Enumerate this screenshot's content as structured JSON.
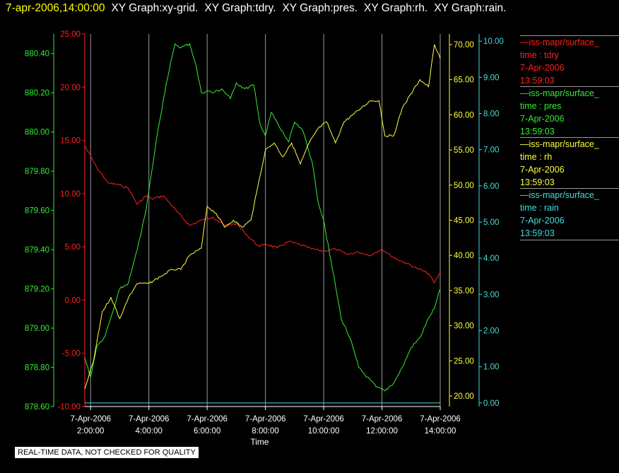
{
  "header": {
    "timestamp": "7-apr-2006,14:00:00",
    "titles": [
      "XY Graph:xy-grid.",
      "XY Graph:tdry.",
      "XY Graph:pres.",
      "XY Graph:rh.",
      "XY Graph:rain."
    ]
  },
  "legend": [
    {
      "source": "—iss-mapr/surface_",
      "var": "time : tdry",
      "date": "7-Apr-2006",
      "time": "13:59:03",
      "color": "#ff2020"
    },
    {
      "source": "—iss-mapr/surface_",
      "var": "time : pres",
      "date": "7-Apr-2006",
      "time": "13:59:03",
      "color": "#33ee33"
    },
    {
      "source": "—iss-mapr/surface_",
      "var": "time : rh",
      "date": "7-Apr-2006",
      "time": "13:59:03",
      "color": "#ffff44"
    },
    {
      "source": "—iss-mapr/surface_",
      "var": "time : rain",
      "date": "7-Apr-2006",
      "time": "13:59:03",
      "color": "#44dddd"
    }
  ],
  "disclaimer": "REAL-TIME DATA, NOT CHECKED FOR QUALITY",
  "chart_data": {
    "type": "line",
    "xlabel": "Time",
    "x_range": [
      1.8,
      14.0
    ],
    "x_ticks": [
      {
        "value": 2,
        "date": "7-Apr-2006",
        "time": "2:00:00"
      },
      {
        "value": 4,
        "date": "7-Apr-2006",
        "time": "4:00:00"
      },
      {
        "value": 6,
        "date": "7-Apr-2006",
        "time": "6:00:00"
      },
      {
        "value": 8,
        "date": "7-Apr-2006",
        "time": "8:00:00"
      },
      {
        "value": 10,
        "date": "7-Apr-2006",
        "time": "10:00:00"
      },
      {
        "value": 12,
        "date": "7-Apr-2006",
        "time": "12:00:00"
      },
      {
        "value": 14,
        "date": "7-Apr-2006",
        "time": "14:00:00"
      }
    ],
    "grid": "vertical",
    "axes": [
      {
        "id": "pres",
        "color": "#33ee33",
        "range": [
          878.6,
          880.5
        ],
        "ticks": [
          "878.60",
          "878.80",
          "879.00",
          "879.20",
          "879.40",
          "879.60",
          "879.80",
          "880.00",
          "880.20",
          "880.40"
        ]
      },
      {
        "id": "tdry",
        "color": "#ff2020",
        "range": [
          -10,
          25
        ],
        "ticks": [
          "-10.00",
          "-5.00",
          "0.00",
          "5.00",
          "10.00",
          "15.00",
          "20.00",
          "25.00"
        ]
      },
      {
        "id": "rh",
        "color": "#ffff44",
        "range": [
          18.5,
          71.5
        ],
        "ticks": [
          "20.00",
          "25.00",
          "30.00",
          "35.00",
          "40.00",
          "45.00",
          "50.00",
          "55.00",
          "60.00",
          "65.00",
          "70.00"
        ]
      },
      {
        "id": "rain",
        "color": "#44dddd",
        "range": [
          -0.1,
          10.2
        ],
        "ticks": [
          "0.00",
          "1.00",
          "2.00",
          "3.00",
          "4.00",
          "5.00",
          "6.00",
          "7.00",
          "8.00",
          "9.00",
          "10.00"
        ]
      }
    ],
    "series": [
      {
        "axis": "tdry",
        "color": "#ff2020",
        "x": [
          1.8,
          2.2,
          2.6,
          3.0,
          3.3,
          3.6,
          3.9,
          4.1,
          4.5,
          5.0,
          5.4,
          5.8,
          6.2,
          6.6,
          7.0,
          7.4,
          7.8,
          8.0,
          8.4,
          8.8,
          9.2,
          9.6,
          10.0,
          10.4,
          10.8,
          11.2,
          11.6,
          12.0,
          12.4,
          12.8,
          13.2,
          13.6,
          13.8,
          14.0
        ],
        "y": [
          14.5,
          12.5,
          11.0,
          10.8,
          10.5,
          9.0,
          9.8,
          9.5,
          9.8,
          8.2,
          7.0,
          7.5,
          7.8,
          7.0,
          7.2,
          6.0,
          5.0,
          5.3,
          4.9,
          5.5,
          5.2,
          4.8,
          4.6,
          4.8,
          4.3,
          4.5,
          4.2,
          4.8,
          4.0,
          3.5,
          3.0,
          2.5,
          1.6,
          2.6
        ]
      },
      {
        "axis": "pres",
        "color": "#33ee33",
        "x": [
          1.8,
          2.0,
          2.2,
          2.5,
          2.8,
          3.0,
          3.3,
          3.6,
          3.9,
          4.1,
          4.3,
          4.6,
          4.9,
          5.1,
          5.4,
          5.6,
          5.8,
          6.0,
          6.2,
          6.5,
          6.8,
          7.0,
          7.3,
          7.6,
          7.8,
          8.0,
          8.2,
          8.5,
          8.8,
          9.0,
          9.3,
          9.6,
          9.8,
          10.0,
          10.2,
          10.4,
          10.6,
          10.9,
          11.2,
          11.5,
          11.8,
          12.1,
          12.4,
          12.7,
          13.0,
          13.3,
          13.6,
          13.8,
          14.0
        ],
        "y": [
          878.85,
          878.75,
          878.9,
          878.96,
          879.1,
          879.2,
          879.23,
          879.4,
          879.6,
          879.8,
          880.0,
          880.25,
          880.45,
          880.43,
          880.45,
          880.35,
          880.2,
          880.21,
          880.2,
          880.22,
          880.17,
          880.25,
          880.22,
          880.24,
          880.05,
          879.98,
          880.1,
          880.02,
          879.95,
          880.05,
          880.0,
          879.85,
          879.65,
          879.55,
          879.38,
          879.22,
          879.05,
          878.95,
          878.8,
          878.75,
          878.7,
          878.68,
          878.72,
          878.8,
          878.9,
          878.95,
          879.05,
          879.1,
          879.2
        ]
      },
      {
        "axis": "rh",
        "color": "#ffff44",
        "x": [
          1.8,
          2.1,
          2.4,
          2.7,
          3.0,
          3.3,
          3.6,
          4.0,
          4.4,
          4.8,
          5.1,
          5.4,
          5.8,
          6.0,
          6.3,
          6.6,
          6.9,
          7.2,
          7.5,
          7.7,
          8.0,
          8.3,
          8.6,
          8.9,
          9.2,
          9.5,
          9.8,
          10.1,
          10.4,
          10.7,
          11.0,
          11.3,
          11.6,
          11.9,
          12.1,
          12.4,
          12.7,
          13.0,
          13.3,
          13.6,
          13.8,
          14.0
        ],
        "y": [
          21,
          25,
          32,
          34,
          31,
          34,
          36,
          36,
          37,
          38,
          38,
          40,
          41,
          47,
          46,
          44,
          45,
          44,
          45,
          49,
          55,
          56,
          54,
          56,
          53,
          56,
          58,
          59,
          56,
          59,
          60,
          61,
          62,
          62,
          57,
          57,
          61,
          63,
          65,
          64,
          70,
          68
        ]
      },
      {
        "axis": "rain",
        "color": "#44dddd",
        "x": [
          1.8,
          14.0
        ],
        "y": [
          0.0,
          0.0
        ]
      }
    ]
  }
}
